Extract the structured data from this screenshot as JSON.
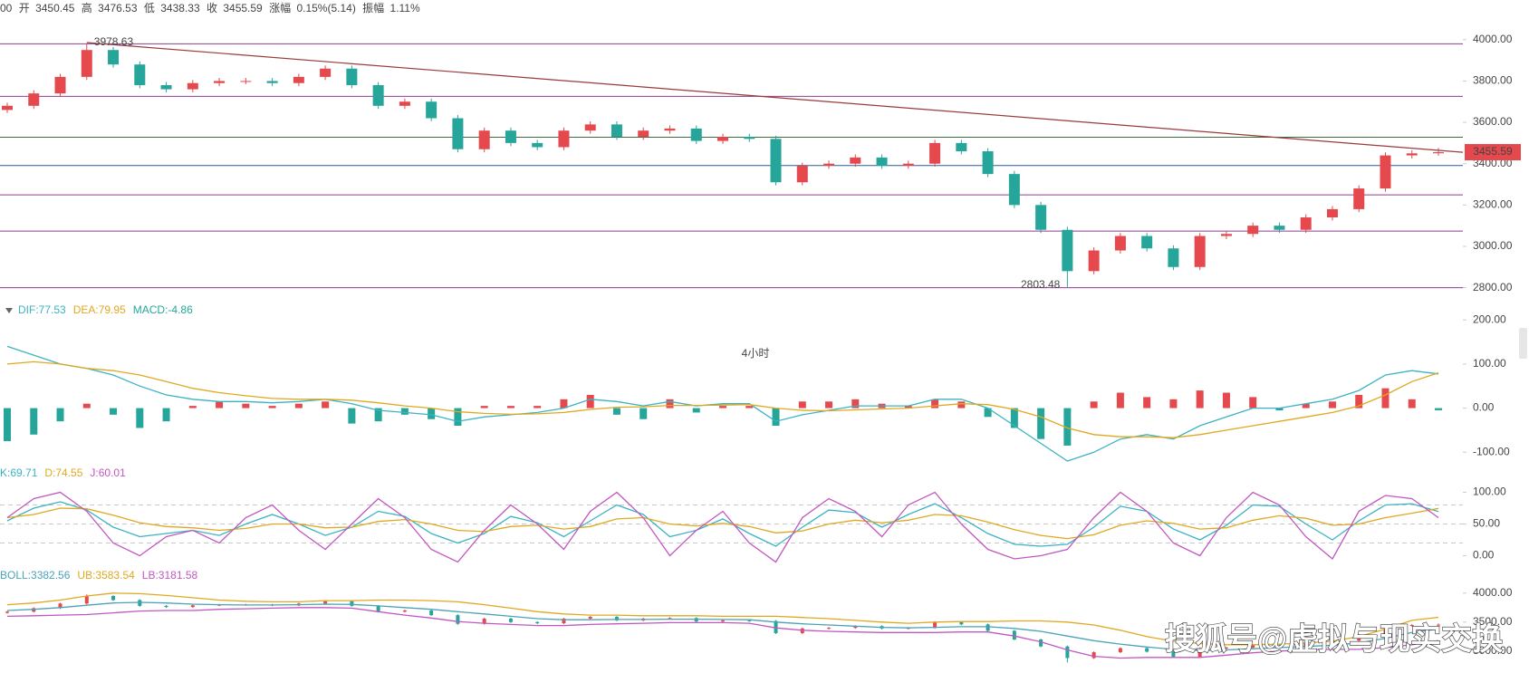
{
  "header": [
    "00",
    "开",
    "3450.45",
    "高",
    "3476.53",
    "低",
    "3438.33",
    "收",
    "3455.59",
    "涨幅",
    "0.15%(5.14)",
    "振幅",
    "1.11%"
  ],
  "watermark": "搜狐号@虚拟与现实交换",
  "chart_data": [
    {
      "type": "candlestick",
      "open": [
        3660,
        3680,
        3740,
        3820,
        3950,
        3880,
        3780,
        3760,
        3790,
        3800,
        3800,
        3790,
        3820,
        3860,
        3780,
        3680,
        3700,
        3620,
        3470,
        3560,
        3500,
        3480,
        3560,
        3590,
        3530,
        3560,
        3570,
        3510,
        3530,
        3520,
        3310,
        3390,
        3400,
        3430,
        3390,
        3400,
        3500,
        3460,
        3350,
        3200,
        3080,
        2880,
        2980,
        3050,
        2990,
        2900,
        3050,
        3060,
        3100,
        3080,
        3140,
        3180,
        3280,
        3440,
        3450.45
      ],
      "high": [
        3695,
        3755,
        3835,
        3978.63,
        3965,
        3895,
        3795,
        3805,
        3815,
        3815,
        3815,
        3835,
        3875,
        3875,
        3795,
        3715,
        3715,
        3635,
        3575,
        3575,
        3515,
        3575,
        3605,
        3605,
        3575,
        3585,
        3585,
        3545,
        3545,
        3535,
        3405,
        3415,
        3445,
        3445,
        3415,
        3515,
        3515,
        3475,
        3365,
        3215,
        3095,
        2995,
        3065,
        3065,
        3005,
        3065,
        3075,
        3115,
        3115,
        3155,
        3195,
        3295,
        3455,
        3465,
        3476.53
      ],
      "low": [
        3645,
        3665,
        3725,
        3805,
        3865,
        3765,
        3745,
        3745,
        3775,
        3785,
        3775,
        3775,
        3805,
        3765,
        3665,
        3665,
        3605,
        3455,
        3455,
        3485,
        3465,
        3465,
        3545,
        3515,
        3515,
        3545,
        3495,
        3495,
        3505,
        3295,
        3295,
        3375,
        3385,
        3375,
        3375,
        3385,
        3445,
        3335,
        3185,
        3065,
        2803.48,
        2865,
        2965,
        2975,
        2885,
        2885,
        3035,
        3045,
        3065,
        3065,
        3125,
        3165,
        3265,
        3425,
        3438.33
      ],
      "close": [
        3680,
        3740,
        3820,
        3950,
        3880,
        3780,
        3760,
        3790,
        3800,
        3800,
        3790,
        3820,
        3860,
        3780,
        3680,
        3700,
        3620,
        3470,
        3560,
        3500,
        3480,
        3560,
        3590,
        3530,
        3560,
        3570,
        3510,
        3530,
        3520,
        3310,
        3390,
        3400,
        3430,
        3390,
        3400,
        3500,
        3460,
        3350,
        3200,
        3080,
        2880,
        2980,
        3050,
        2990,
        2900,
        3050,
        3060,
        3100,
        3080,
        3140,
        3180,
        3280,
        3440,
        3450,
        3455.59
      ],
      "up_color": "#e5484d",
      "down_color": "#26a69a",
      "ylim": [
        2750,
        4100
      ],
      "yticks": [
        {
          "value": 2800,
          "label": "2800.00"
        },
        {
          "value": 3000,
          "label": "3000.00"
        },
        {
          "value": 3200,
          "label": "3200.00"
        },
        {
          "value": 3400,
          "label": "3400.00"
        },
        {
          "value": 3600,
          "label": "3600.00"
        },
        {
          "value": 3800,
          "label": "3800.00"
        },
        {
          "value": 4000,
          "label": "4000.00"
        }
      ],
      "levels": [
        {
          "value": 3980,
          "color": "#8e3f8e"
        },
        {
          "value": 3726,
          "color": "#8e3f8e"
        },
        {
          "value": 3528,
          "color": "#3d6b3d"
        },
        {
          "value": 3391,
          "color": "#2f5f8f"
        },
        {
          "value": 3249,
          "color": "#8e3f8e"
        },
        {
          "value": 3074,
          "color": "#8e3f8e"
        },
        {
          "value": 2800,
          "color": "#8e3f8e"
        }
      ],
      "trendline": {
        "values": [
          3986,
          3455
        ],
        "color": "#9b3a3a"
      },
      "last_price_color": "#e5484d"
    },
    {
      "type": "macd",
      "series": [
        {
          "label": "DIF:77.53",
          "color": "#3bb3c3",
          "values": [
            140,
            120,
            100,
            90,
            75,
            50,
            30,
            20,
            15,
            15,
            12,
            15,
            20,
            10,
            -5,
            -10,
            -15,
            -30,
            -20,
            -15,
            -10,
            0,
            20,
            15,
            5,
            15,
            5,
            10,
            10,
            -30,
            -15,
            -5,
            5,
            5,
            5,
            20,
            20,
            0,
            -40,
            -80,
            -120,
            -100,
            -70,
            -60,
            -70,
            -40,
            -20,
            0,
            0,
            10,
            20,
            40,
            75,
            85,
            77.53
          ]
        },
        {
          "label": "DEA:79.95",
          "color": "#e0a820",
          "values": [
            100,
            105,
            100,
            90,
            85,
            75,
            60,
            45,
            35,
            28,
            22,
            20,
            20,
            18,
            12,
            5,
            0,
            -8,
            -12,
            -14,
            -13,
            -10,
            -3,
            2,
            3,
            6,
            6,
            7,
            8,
            0,
            -5,
            -6,
            -4,
            -2,
            0,
            5,
            10,
            8,
            -3,
            -20,
            -45,
            -60,
            -65,
            -65,
            -67,
            -60,
            -50,
            -40,
            -30,
            -20,
            -10,
            5,
            30,
            60,
            79.95
          ]
        }
      ],
      "histogram": {
        "label": "MACD:-4.86",
        "label_color": "#26a69a",
        "up_color": "#e5484d",
        "down_color": "#26a69a",
        "values": [
          -75,
          -60,
          -30,
          10,
          -15,
          -45,
          -30,
          5,
          15,
          10,
          5,
          10,
          15,
          -35,
          -30,
          -15,
          -25,
          -40,
          5,
          5,
          5,
          20,
          30,
          -15,
          -25,
          20,
          -10,
          5,
          5,
          -40,
          15,
          15,
          20,
          10,
          5,
          20,
          15,
          -20,
          -45,
          -70,
          -85,
          15,
          35,
          25,
          20,
          40,
          35,
          25,
          -5,
          10,
          15,
          30,
          45,
          20,
          -4.86
        ]
      },
      "annotation": "4小时",
      "annotation_color": "#d03a2a",
      "ylim": [
        -120,
        225
      ],
      "yticks": [
        {
          "value": -100,
          "label": "-100.00"
        },
        {
          "value": 0,
          "label": "0.00"
        },
        {
          "value": 100,
          "label": "100.00"
        },
        {
          "value": 200,
          "label": "200.00"
        }
      ]
    },
    {
      "type": "kdj",
      "series": [
        {
          "label": "K:69.71",
          "color": "#3bb3c3",
          "values": [
            55,
            75,
            85,
            72,
            45,
            30,
            35,
            40,
            32,
            50,
            65,
            50,
            32,
            45,
            70,
            62,
            35,
            20,
            35,
            62,
            52,
            30,
            55,
            80,
            65,
            30,
            40,
            58,
            35,
            15,
            45,
            72,
            68,
            45,
            65,
            82,
            60,
            35,
            18,
            15,
            18,
            45,
            78,
            70,
            42,
            25,
            48,
            80,
            78,
            50,
            25,
            55,
            80,
            82,
            69.71
          ]
        },
        {
          "label": "D:74.55",
          "color": "#e0a820",
          "values": [
            60,
            65,
            75,
            74,
            64,
            52,
            46,
            44,
            40,
            43,
            50,
            50,
            44,
            45,
            54,
            57,
            50,
            40,
            38,
            46,
            48,
            42,
            46,
            58,
            60,
            50,
            47,
            51,
            46,
            36,
            39,
            50,
            56,
            52,
            56,
            65,
            63,
            53,
            41,
            32,
            27,
            33,
            48,
            55,
            51,
            42,
            44,
            56,
            63,
            59,
            48,
            50,
            60,
            67,
            74.55
          ]
        },
        {
          "label": "J:60.01",
          "color": "#c257c2",
          "values": [
            60,
            90,
            100,
            70,
            20,
            0,
            30,
            40,
            20,
            60,
            80,
            40,
            10,
            50,
            90,
            60,
            10,
            -10,
            40,
            80,
            50,
            10,
            70,
            100,
            60,
            0,
            40,
            70,
            20,
            -10,
            60,
            90,
            70,
            30,
            80,
            100,
            50,
            10,
            -5,
            0,
            10,
            60,
            100,
            70,
            20,
            0,
            60,
            100,
            80,
            30,
            -5,
            70,
            95,
            90,
            60.01
          ]
        }
      ],
      "guides": [
        20,
        50,
        80
      ],
      "guide_color": "#c8c8c8",
      "ylim": [
        -15,
        125
      ],
      "yticks": [
        {
          "value": 0,
          "label": "0.00"
        },
        {
          "value": 50,
          "label": "50.00"
        },
        {
          "value": 100,
          "label": "100.00"
        }
      ]
    },
    {
      "type": "boll",
      "series": [
        {
          "label": "BOLL:3382.56",
          "color": "#4aa3b8",
          "values": [
            3700,
            3720,
            3750,
            3790,
            3830,
            3840,
            3830,
            3810,
            3800,
            3795,
            3795,
            3800,
            3810,
            3805,
            3780,
            3750,
            3720,
            3680,
            3640,
            3600,
            3560,
            3540,
            3540,
            3545,
            3545,
            3550,
            3550,
            3545,
            3540,
            3500,
            3470,
            3450,
            3430,
            3410,
            3400,
            3410,
            3420,
            3420,
            3390,
            3340,
            3260,
            3180,
            3120,
            3070,
            3030,
            3010,
            3020,
            3040,
            3060,
            3080,
            3100,
            3140,
            3220,
            3320,
            3382.56
          ]
        },
        {
          "label": "UB:3583.54",
          "color": "#e0a820",
          "values": [
            3800,
            3830,
            3880,
            3950,
            4000,
            3990,
            3960,
            3920,
            3880,
            3860,
            3850,
            3850,
            3870,
            3870,
            3880,
            3880,
            3870,
            3850,
            3800,
            3740,
            3680,
            3640,
            3620,
            3620,
            3610,
            3610,
            3610,
            3600,
            3600,
            3600,
            3580,
            3560,
            3530,
            3500,
            3480,
            3500,
            3510,
            3510,
            3520,
            3520,
            3500,
            3450,
            3360,
            3250,
            3170,
            3130,
            3110,
            3110,
            3120,
            3140,
            3170,
            3250,
            3380,
            3530,
            3583.54
          ]
        },
        {
          "label": "LB:3181.58",
          "color": "#c257c2",
          "values": [
            3600,
            3610,
            3620,
            3630,
            3660,
            3690,
            3700,
            3700,
            3720,
            3730,
            3740,
            3750,
            3750,
            3740,
            3680,
            3620,
            3570,
            3510,
            3480,
            3460,
            3440,
            3440,
            3460,
            3470,
            3480,
            3490,
            3490,
            3490,
            3480,
            3400,
            3360,
            3340,
            3330,
            3320,
            3320,
            3320,
            3330,
            3330,
            3260,
            3160,
            3020,
            2910,
            2880,
            2890,
            2890,
            2890,
            2930,
            2970,
            3000,
            3020,
            3030,
            3030,
            3060,
            3110,
            3181.58
          ]
        }
      ],
      "ylim": [
        2700,
        4200
      ],
      "yticks": [
        {
          "value": 3000,
          "label": "3000.00"
        },
        {
          "value": 3500,
          "label": "3500.00"
        },
        {
          "value": 4000,
          "label": "4000.00"
        }
      ]
    }
  ]
}
